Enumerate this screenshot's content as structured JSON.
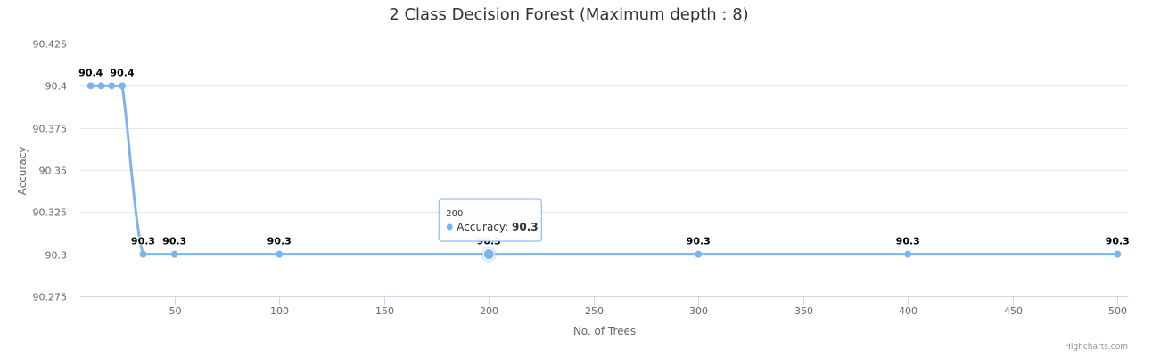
{
  "chart_data": {
    "type": "line",
    "title": "2 Class Decision Forest (Maximum depth : 8)",
    "xlabel": "No. of Trees",
    "ylabel": "Accuracy",
    "series": [
      {
        "name": "Accuracy",
        "color": "#7cb5ec",
        "x": [
          10,
          15,
          20,
          25,
          35,
          50,
          100,
          200,
          300,
          400,
          500
        ],
        "y": [
          90.4,
          90.4,
          90.4,
          90.4,
          90.3,
          90.3,
          90.3,
          90.3,
          90.3,
          90.3,
          90.3
        ]
      }
    ],
    "xlim": [
      5,
      505
    ],
    "ylim": [
      90.275,
      90.425
    ],
    "x_ticks": [
      50,
      100,
      150,
      200,
      250,
      300,
      350,
      400,
      450,
      500
    ],
    "y_ticks": [
      90.275,
      90.3,
      90.325,
      90.35,
      90.375,
      90.4,
      90.425
    ],
    "data_labels": [
      {
        "x": 10,
        "text": "90.4"
      },
      {
        "x": 25,
        "text": "90.4"
      },
      {
        "x": 35,
        "text": "90.3"
      },
      {
        "x": 50,
        "text": "90.3"
      },
      {
        "x": 100,
        "text": "90.3"
      },
      {
        "x": 200,
        "text": "90.3"
      },
      {
        "x": 300,
        "text": "90.3"
      },
      {
        "x": 400,
        "text": "90.3"
      },
      {
        "x": 500,
        "text": "90.3"
      }
    ],
    "grid": true,
    "legend": "none",
    "tooltip": {
      "x": 200,
      "header": "200",
      "series_name": "Accuracy",
      "value": "90.3"
    }
  },
  "credits": "Highcharts.com"
}
